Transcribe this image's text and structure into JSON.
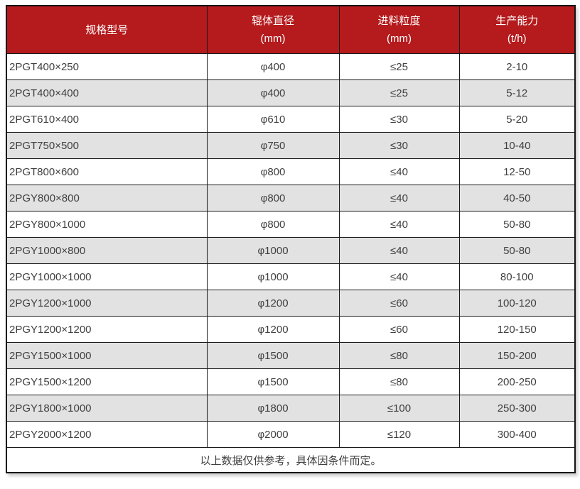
{
  "table": {
    "columns": [
      {
        "title": "规格型号",
        "unit": ""
      },
      {
        "title": "辊体直径",
        "unit": "(mm)"
      },
      {
        "title": "进料粒度",
        "unit": "(mm)"
      },
      {
        "title": "生产能力",
        "unit": "(t/h)"
      }
    ],
    "rows": [
      {
        "model": "2PGT400×250",
        "diameter": "φ400",
        "feed": "≤25",
        "capacity": "2-10"
      },
      {
        "model": "2PGT400×400",
        "diameter": "φ400",
        "feed": "≤25",
        "capacity": "5-12"
      },
      {
        "model": "2PGT610×400",
        "diameter": "φ610",
        "feed": "≤30",
        "capacity": "5-20"
      },
      {
        "model": "2PGT750×500",
        "diameter": "φ750",
        "feed": "≤30",
        "capacity": "10-40"
      },
      {
        "model": "2PGT800×600",
        "diameter": "φ800",
        "feed": "≤40",
        "capacity": "12-50"
      },
      {
        "model": "2PGY800×800",
        "diameter": "φ800",
        "feed": "≤40",
        "capacity": "40-50"
      },
      {
        "model": "2PGY800×1000",
        "diameter": "φ800",
        "feed": "≤40",
        "capacity": "50-80"
      },
      {
        "model": "2PGY1000×800",
        "diameter": "φ1000",
        "feed": "≤40",
        "capacity": "50-80"
      },
      {
        "model": "2PGY1000×1000",
        "diameter": "φ1000",
        "feed": "≤40",
        "capacity": "80-100"
      },
      {
        "model": "2PGY1200×1000",
        "diameter": "φ1200",
        "feed": "≤60",
        "capacity": "100-120"
      },
      {
        "model": "2PGY1200×1200",
        "diameter": "φ1200",
        "feed": "≤60",
        "capacity": "120-150"
      },
      {
        "model": "2PGY1500×1000",
        "diameter": "φ1500",
        "feed": "≤80",
        "capacity": "150-200"
      },
      {
        "model": "2PGY1500×1200",
        "diameter": "φ1500",
        "feed": "≤80",
        "capacity": "200-250"
      },
      {
        "model": "2PGY1800×1000",
        "diameter": "φ1800",
        "feed": "≤100",
        "capacity": "250-300"
      },
      {
        "model": "2PGY2000×1200",
        "diameter": "φ2000",
        "feed": "≤120",
        "capacity": "300-400"
      }
    ],
    "footer_note": "以上数据仅供参考，具体因条件而定。"
  },
  "colors": {
    "header_bg": "#b51a1c",
    "header_text": "#ffffff",
    "stripe_bg": "#e2e2e2",
    "border": "#1a1a1a",
    "body_text": "#404040"
  }
}
